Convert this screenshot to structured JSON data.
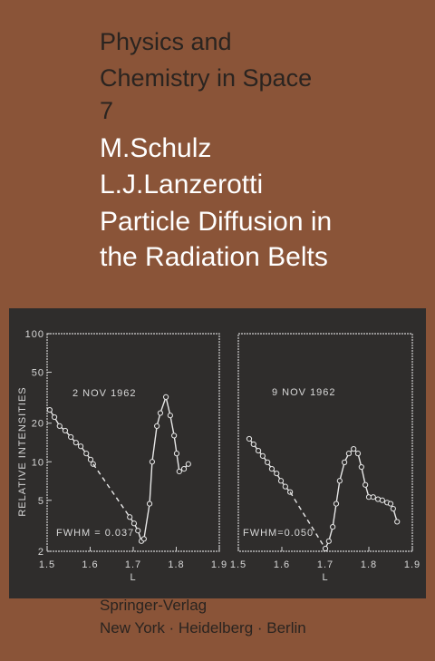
{
  "cover": {
    "series": [
      "Physics and",
      "Chemistry in Space",
      "7"
    ],
    "authors": [
      "M.Schulz",
      "L.J.Lanzerotti"
    ],
    "title": [
      "Particle Diffusion in",
      "the Radiation Belts"
    ],
    "publisher": [
      "Springer-Verlag",
      "New York · Heidelberg · Berlin"
    ]
  },
  "chart_data": [
    {
      "type": "scatter",
      "x_label": "L",
      "y_label": "RELATIVE INTENSITIES",
      "log_y": true,
      "annotations": [
        "2 NOV 1962",
        "FWHM = 0.037"
      ],
      "xlim": [
        1.5,
        1.9
      ],
      "xticks": [
        1.5,
        1.6,
        1.7,
        1.8,
        1.9
      ],
      "ylim": [
        2,
        100
      ],
      "yticks": [
        2,
        5,
        10,
        20,
        50,
        100
      ],
      "color": "#e8e8e8",
      "series": [
        {
          "x": [
            1.506,
            1.517,
            1.529,
            1.542,
            1.555,
            1.567,
            1.578,
            1.591,
            1.601,
            1.607
          ],
          "values": [
            25.4,
            22.3,
            19.0,
            17.5,
            15.6,
            14.1,
            13.2,
            11.6,
            10.4,
            9.6
          ],
          "line": "solid",
          "markers": true
        },
        {
          "x": [
            1.607,
            1.692
          ],
          "values": [
            9.6,
            3.7
          ],
          "line": "dashed",
          "markers": false
        },
        {
          "x": [
            1.692,
            1.702,
            1.711,
            1.719,
            1.725,
            1.738,
            1.744,
            1.755,
            1.763,
            1.776,
            1.786,
            1.795,
            1.801,
            1.807,
            1.818,
            1.828
          ],
          "values": [
            3.7,
            3.3,
            2.9,
            2.4,
            2.5,
            4.7,
            10,
            19,
            24,
            32,
            23,
            16,
            11.6,
            8.4,
            8.8,
            9.6
          ],
          "line": "solid",
          "markers": true
        }
      ]
    },
    {
      "type": "scatter",
      "x_label": "L",
      "log_y": true,
      "annotations": [
        "9 NOV 1962",
        "FWHM=0.050"
      ],
      "xlim": [
        1.5,
        1.9
      ],
      "xticks": [
        1.5,
        1.6,
        1.7,
        1.8,
        1.9
      ],
      "ylim": [
        2,
        100
      ],
      "color": "#e8e8e8",
      "series": [
        {
          "x": [
            1.525,
            1.535,
            1.546,
            1.556,
            1.567,
            1.577,
            1.588,
            1.598,
            1.608,
            1.619
          ],
          "values": [
            15.1,
            13.7,
            12.2,
            11.1,
            9.9,
            8.8,
            8.1,
            7.1,
            6.4,
            5.8
          ],
          "line": "solid",
          "markers": true
        },
        {
          "x": [
            1.619,
            1.7
          ],
          "values": [
            5.8,
            2.1
          ],
          "line": "dashed",
          "markers": false
        },
        {
          "x": [
            1.7,
            1.708,
            1.717,
            1.725,
            1.733,
            1.744,
            1.754,
            1.765,
            1.775,
            1.783,
            1.792,
            1.8,
            1.81,
            1.821,
            1.831,
            1.842,
            1.85,
            1.856,
            1.865
          ],
          "values": [
            2.1,
            2.4,
            3.1,
            4.7,
            7.1,
            9.9,
            11.6,
            12.6,
            11.6,
            9.1,
            6.6,
            5.3,
            5.3,
            5.1,
            5.0,
            4.8,
            4.7,
            4.3,
            3.4
          ],
          "line": "solid",
          "markers": true
        }
      ]
    }
  ]
}
